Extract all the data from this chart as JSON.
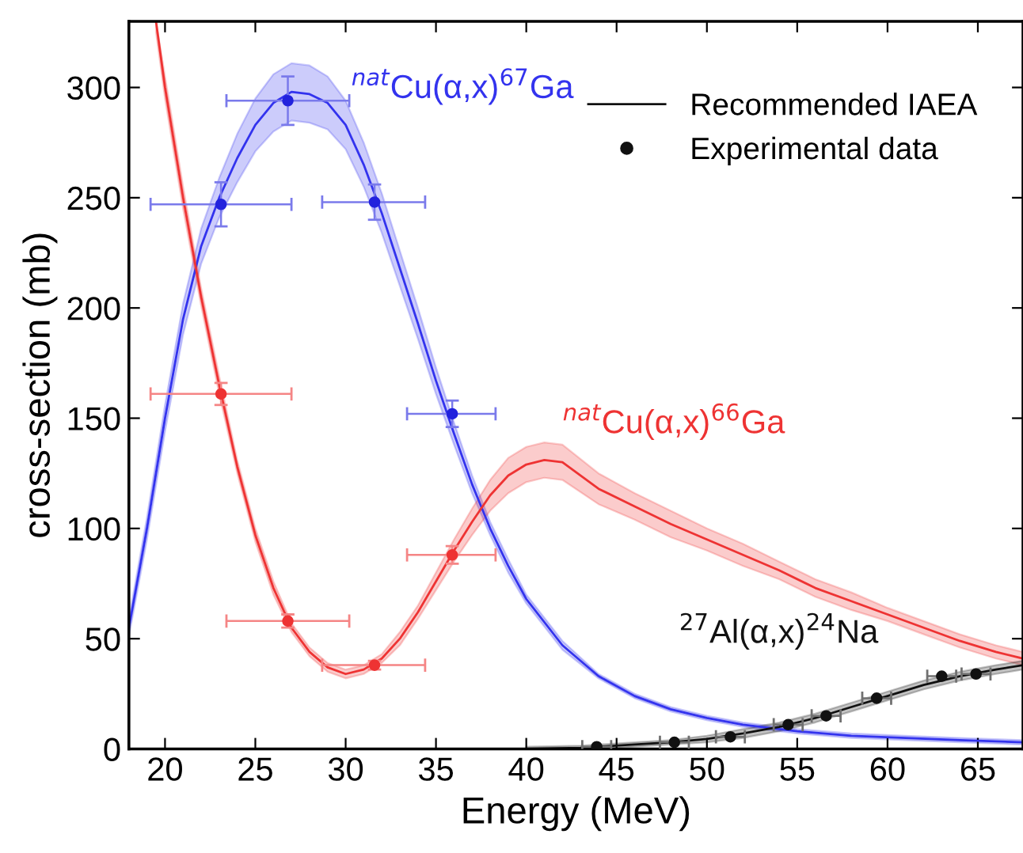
{
  "chart_data": {
    "type": "line",
    "xlabel": "Energy (MeV)",
    "ylabel": "cross-section (mb)",
    "xlim": [
      18,
      67.5
    ],
    "ylim": [
      0,
      330
    ],
    "xticks": [
      20,
      25,
      30,
      35,
      40,
      45,
      50,
      55,
      60,
      65
    ],
    "yticks": [
      0,
      50,
      100,
      150,
      200,
      250,
      300
    ],
    "grid": false,
    "legend": "top right",
    "series": [
      {
        "color": "#3333ee",
        "marker": "none",
        "line_style": "solid",
        "x": [
          18,
          19,
          20,
          21,
          22,
          23,
          24,
          25,
          26,
          27,
          28,
          29,
          30,
          31,
          32,
          33,
          34,
          35,
          36,
          37,
          38,
          39,
          40,
          42,
          44,
          46,
          48,
          50,
          52,
          55,
          58,
          61,
          64,
          67.5
        ],
        "values": [
          55,
          100,
          150,
          195,
          228,
          250,
          268,
          283,
          293,
          298,
          297,
          293,
          283,
          265,
          243,
          218,
          193,
          167,
          143,
          120,
          100,
          83,
          68,
          47,
          33,
          24,
          18,
          14,
          11,
          8,
          6,
          5,
          4,
          3
        ],
        "lower": [
          51,
          95,
          144,
          188,
          220,
          241,
          257,
          271,
          280,
          285,
          284,
          281,
          272,
          255,
          234,
          210,
          186,
          161,
          138,
          116,
          97,
          80,
          66,
          45,
          32,
          23,
          17,
          13,
          10,
          7,
          5,
          4,
          3,
          2
        ],
        "upper": [
          59,
          105,
          156,
          202,
          236,
          259,
          279,
          295,
          306,
          311,
          310,
          305,
          294,
          275,
          252,
          226,
          200,
          173,
          148,
          124,
          103,
          86,
          70,
          49,
          34,
          25,
          19,
          15,
          12,
          9,
          7,
          6,
          5,
          4
        ]
      },
      {
        "type": "scatter",
        "color": "#2222dd",
        "marker": "circle",
        "x": [
          23.1,
          26.8,
          31.6,
          35.9
        ],
        "values": [
          247,
          294,
          248,
          152
        ],
        "errors": [
          10,
          11,
          8,
          6
        ],
        "xerrors": [
          [
            19.2,
            27.0
          ],
          [
            23.4,
            30.2
          ],
          [
            28.7,
            34.4
          ],
          [
            33.4,
            38.3
          ]
        ]
      },
      {
        "color": "#ee3333",
        "marker": "none",
        "line_style": "solid",
        "x": [
          19.5,
          20,
          21,
          22,
          23,
          24,
          25,
          26,
          27,
          28,
          29,
          30,
          31,
          32,
          33,
          34,
          35,
          36,
          37,
          38,
          39,
          40,
          41,
          42,
          44,
          46,
          48,
          50,
          52,
          54,
          56,
          58,
          60,
          62,
          64,
          66,
          67.5
        ],
        "values": [
          330,
          300,
          250,
          205,
          165,
          128,
          97,
          73,
          55,
          44,
          37,
          34,
          36,
          41,
          50,
          62,
          76,
          90,
          103,
          115,
          124,
          129,
          131,
          130,
          118,
          110,
          102,
          95,
          88,
          81,
          73,
          67,
          61,
          55,
          49,
          44,
          41
        ],
        "lower": [
          325,
          295,
          245,
          201,
          161,
          125,
          94,
          70,
          53,
          42,
          35,
          32,
          34,
          39,
          47,
          59,
          72,
          85,
          97,
          108,
          116,
          121,
          123,
          122,
          111,
          104,
          96,
          90,
          83,
          77,
          69,
          63,
          58,
          52,
          46,
          41,
          38
        ],
        "upper": [
          330,
          305,
          255,
          209,
          169,
          131,
          100,
          76,
          57,
          46,
          39,
          36,
          38,
          43,
          53,
          65,
          80,
          95,
          109,
          122,
          132,
          137,
          139,
          138,
          125,
          116,
          108,
          100,
          93,
          85,
          77,
          71,
          64,
          58,
          52,
          47,
          44
        ]
      },
      {
        "type": "scatter",
        "color": "#ee3333",
        "marker": "circle",
        "x": [
          23.1,
          26.8,
          31.6,
          35.9
        ],
        "values": [
          161,
          58,
          38,
          88
        ],
        "errors": [
          5,
          3,
          2,
          4
        ],
        "xerrors": [
          [
            19.2,
            27.0
          ],
          [
            23.4,
            30.2
          ],
          [
            28.7,
            34.4
          ],
          [
            33.4,
            38.3
          ]
        ]
      },
      {
        "name": "Recommended IAEA",
        "color": "#111111",
        "marker": "none",
        "line_style": "solid",
        "x": [
          40,
          43,
          44,
          46,
          48,
          50,
          52,
          54,
          56,
          58,
          60,
          62,
          64,
          66,
          67.5
        ],
        "values": [
          0,
          0.5,
          1,
          2,
          3,
          4.5,
          7,
          10,
          14,
          19,
          24,
          29,
          33,
          36,
          38
        ],
        "lower": [
          0,
          0,
          0,
          1,
          2,
          3,
          5,
          8,
          12,
          17,
          22,
          27,
          31,
          34,
          36
        ],
        "upper": [
          1,
          1.5,
          2,
          3,
          4,
          6,
          9,
          12,
          16,
          21,
          26,
          31,
          35,
          38,
          40
        ]
      },
      {
        "type": "scatter",
        "name": "Experimental data",
        "color": "#111111",
        "marker": "circle",
        "x": [
          43.9,
          48.2,
          51.3,
          54.5,
          56.6,
          59.4,
          63.0,
          64.9
        ],
        "values": [
          1,
          3,
          5.5,
          11,
          15,
          23,
          33,
          34
        ],
        "xerrors": [
          0.8,
          0.8,
          0.8,
          0.8,
          0.8,
          0.8,
          0.8,
          0.8
        ]
      }
    ],
    "annotations": [
      {
        "text": "$^{nat}$Cu(α,x)$^{67}$Ga",
        "x": 30.3,
        "y": 292
      },
      {
        "text": "$^{nat}$Cu(α,x)$^{66}$Ga",
        "x": 42,
        "y": 140
      },
      {
        "text": "$^{27}$Al(α,x)$^{24}$Na",
        "x": 56,
        "y": 14
      }
    ]
  }
}
